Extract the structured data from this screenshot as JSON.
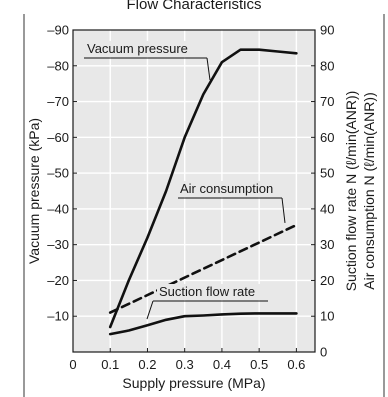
{
  "chart_data": {
    "type": "line",
    "title": "Flow Characteristics",
    "xlabel": "Supply pressure (MPa)",
    "ylabel_left": "Vacuum pressure (kPa)",
    "ylabel_right_1": "Suction flow rate N (ℓ/min(ANR))",
    "ylabel_right_2": "Air consumption N (ℓ/min(ANR))",
    "xlim": [
      0,
      0.65
    ],
    "x_ticks": [
      0,
      0.1,
      0.2,
      0.3,
      0.4,
      0.5,
      0.6
    ],
    "x_tick_labels": [
      "0",
      "0.1",
      "0.2",
      "0.3",
      "0.4",
      "0.5",
      "0.6"
    ],
    "ylim_left": [
      0,
      -90
    ],
    "y_left_ticks": [
      -10,
      -20,
      -30,
      -40,
      -50,
      -60,
      -70,
      -80,
      -90
    ],
    "y_left_tick_labels": [
      "–10",
      "–20",
      "–30",
      "–40",
      "–50",
      "–60",
      "–70",
      "–80",
      "–90"
    ],
    "ylim_right": [
      0,
      90
    ],
    "y_right_ticks": [
      0,
      10,
      20,
      30,
      40,
      50,
      60,
      70,
      80,
      90
    ],
    "y_right_tick_labels": [
      "0",
      "10",
      "20",
      "30",
      "40",
      "50",
      "60",
      "70",
      "80",
      "90"
    ],
    "grid": true,
    "series": [
      {
        "name": "Vacuum pressure",
        "axis": "left",
        "style": "solid",
        "x": [
          0.1,
          0.15,
          0.2,
          0.25,
          0.3,
          0.35,
          0.4,
          0.45,
          0.5,
          0.55,
          0.6
        ],
        "y": [
          -7,
          -20,
          -32,
          -45,
          -60,
          -72,
          -81,
          -84.5,
          -84.5,
          -84,
          -83.5
        ]
      },
      {
        "name": "Air consumption",
        "axis": "right",
        "style": "dashed",
        "x": [
          0.1,
          0.6
        ],
        "y": [
          11,
          35.5
        ]
      },
      {
        "name": "Suction flow rate",
        "axis": "right",
        "style": "solid",
        "x": [
          0.1,
          0.15,
          0.2,
          0.25,
          0.3,
          0.35,
          0.4,
          0.45,
          0.5,
          0.55,
          0.6
        ],
        "y": [
          5,
          6,
          7.5,
          9,
          10,
          10.2,
          10.5,
          10.7,
          10.8,
          10.8,
          10.8
        ]
      }
    ],
    "annotations": [
      {
        "text": "Vacuum pressure",
        "series": "Vacuum pressure"
      },
      {
        "text": "Air consumption",
        "series": "Air consumption"
      },
      {
        "text": "Suction flow rate",
        "series": "Suction flow rate"
      }
    ]
  }
}
